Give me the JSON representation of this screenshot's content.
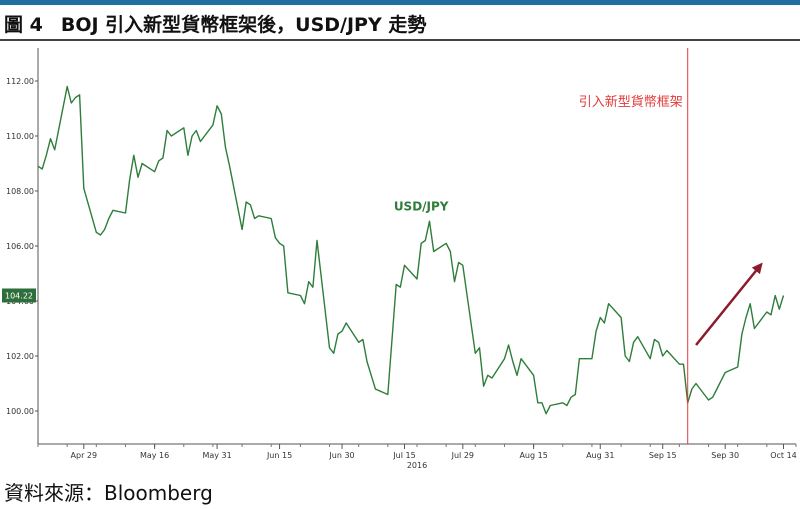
{
  "figure": {
    "label": "圖 4",
    "title": "BOJ 引入新型貨幣框架後，USD/JPY 走勢",
    "source": "資料來源：Bloomberg"
  },
  "colors": {
    "line": "#2e7d3a",
    "event": "#e23a3a",
    "arrow": "#8b1a2a",
    "rule": "#1f6fa0"
  },
  "chart_data": {
    "type": "line",
    "title": "",
    "xlabel": "",
    "ylabel": "",
    "ylim": [
      98.8,
      113.2
    ],
    "yticks": [
      100,
      102,
      104,
      106,
      108,
      110,
      112
    ],
    "ytick_labels": [
      "100.00",
      "102.00",
      "104.00",
      "106.00",
      "108.00",
      "110.00",
      "112.00"
    ],
    "xtick_labels": [
      {
        "date": "2016-04-29",
        "label": "Apr 29"
      },
      {
        "date": "2016-05-16",
        "label": "May 16"
      },
      {
        "date": "2016-05-31",
        "label": "May 31"
      },
      {
        "date": "2016-06-15",
        "label": "Jun 15"
      },
      {
        "date": "2016-06-30",
        "label": "Jun 30"
      },
      {
        "date": "2016-07-15",
        "label": "Jul 15"
      },
      {
        "date": "2016-07-29",
        "label": "Jul 29"
      },
      {
        "date": "2016-08-15",
        "label": "Aug 15"
      },
      {
        "date": "2016-08-31",
        "label": "Aug 31"
      },
      {
        "date": "2016-09-15",
        "label": "Sep 15"
      },
      {
        "date": "2016-09-30",
        "label": "Sep 30"
      },
      {
        "date": "2016-10-14",
        "label": "Oct 14"
      }
    ],
    "year_label": "2016",
    "last_value_tag": "104.22",
    "series": [
      {
        "name": "USD/JPY",
        "points": [
          [
            "2016-04-18",
            108.9
          ],
          [
            "2016-04-19",
            108.8
          ],
          [
            "2016-04-20",
            109.3
          ],
          [
            "2016-04-21",
            109.9
          ],
          [
            "2016-04-22",
            109.5
          ],
          [
            "2016-04-25",
            111.8
          ],
          [
            "2016-04-26",
            111.2
          ],
          [
            "2016-04-27",
            111.4
          ],
          [
            "2016-04-28",
            111.5
          ],
          [
            "2016-04-29",
            108.1
          ],
          [
            "2016-05-02",
            106.5
          ],
          [
            "2016-05-03",
            106.4
          ],
          [
            "2016-05-04",
            106.6
          ],
          [
            "2016-05-05",
            107.0
          ],
          [
            "2016-05-06",
            107.3
          ],
          [
            "2016-05-09",
            107.2
          ],
          [
            "2016-05-10",
            108.4
          ],
          [
            "2016-05-11",
            109.3
          ],
          [
            "2016-05-12",
            108.5
          ],
          [
            "2016-05-13",
            109.0
          ],
          [
            "2016-05-16",
            108.7
          ],
          [
            "2016-05-17",
            109.1
          ],
          [
            "2016-05-18",
            109.2
          ],
          [
            "2016-05-19",
            110.2
          ],
          [
            "2016-05-20",
            110.0
          ],
          [
            "2016-05-23",
            110.3
          ],
          [
            "2016-05-24",
            109.3
          ],
          [
            "2016-05-25",
            110.0
          ],
          [
            "2016-05-26",
            110.2
          ],
          [
            "2016-05-27",
            109.8
          ],
          [
            "2016-05-30",
            110.4
          ],
          [
            "2016-05-31",
            111.1
          ],
          [
            "2016-06-01",
            110.8
          ],
          [
            "2016-06-02",
            109.6
          ],
          [
            "2016-06-03",
            108.9
          ],
          [
            "2016-06-06",
            106.6
          ],
          [
            "2016-06-07",
            107.6
          ],
          [
            "2016-06-08",
            107.5
          ],
          [
            "2016-06-09",
            107.0
          ],
          [
            "2016-06-10",
            107.1
          ],
          [
            "2016-06-13",
            107.0
          ],
          [
            "2016-06-14",
            106.3
          ],
          [
            "2016-06-15",
            106.1
          ],
          [
            "2016-06-16",
            106.0
          ],
          [
            "2016-06-17",
            104.3
          ],
          [
            "2016-06-20",
            104.2
          ],
          [
            "2016-06-21",
            103.9
          ],
          [
            "2016-06-22",
            104.7
          ],
          [
            "2016-06-23",
            104.5
          ],
          [
            "2016-06-24",
            106.2
          ],
          [
            "2016-06-27",
            102.3
          ],
          [
            "2016-06-28",
            102.1
          ],
          [
            "2016-06-29",
            102.8
          ],
          [
            "2016-06-30",
            102.9
          ],
          [
            "2016-07-01",
            103.2
          ],
          [
            "2016-07-04",
            102.5
          ],
          [
            "2016-07-05",
            102.6
          ],
          [
            "2016-07-06",
            101.8
          ],
          [
            "2016-07-07",
            101.3
          ],
          [
            "2016-07-08",
            100.8
          ],
          [
            "2016-07-11",
            100.6
          ],
          [
            "2016-07-12",
            102.6
          ],
          [
            "2016-07-13",
            104.6
          ],
          [
            "2016-07-14",
            104.5
          ],
          [
            "2016-07-15",
            105.3
          ],
          [
            "2016-07-18",
            104.8
          ],
          [
            "2016-07-19",
            106.1
          ],
          [
            "2016-07-20",
            106.2
          ],
          [
            "2016-07-21",
            106.9
          ],
          [
            "2016-07-22",
            105.8
          ],
          [
            "2016-07-25",
            106.1
          ],
          [
            "2016-07-26",
            105.8
          ],
          [
            "2016-07-27",
            104.7
          ],
          [
            "2016-07-28",
            105.4
          ],
          [
            "2016-07-29",
            105.3
          ],
          [
            "2016-08-01",
            102.1
          ],
          [
            "2016-08-02",
            102.3
          ],
          [
            "2016-08-03",
            100.9
          ],
          [
            "2016-08-04",
            101.3
          ],
          [
            "2016-08-05",
            101.2
          ],
          [
            "2016-08-08",
            101.9
          ],
          [
            "2016-08-09",
            102.4
          ],
          [
            "2016-08-10",
            101.8
          ],
          [
            "2016-08-11",
            101.3
          ],
          [
            "2016-08-12",
            101.9
          ],
          [
            "2016-08-15",
            101.3
          ],
          [
            "2016-08-16",
            100.3
          ],
          [
            "2016-08-17",
            100.3
          ],
          [
            "2016-08-18",
            99.9
          ],
          [
            "2016-08-19",
            100.2
          ],
          [
            "2016-08-22",
            100.3
          ],
          [
            "2016-08-23",
            100.2
          ],
          [
            "2016-08-24",
            100.5
          ],
          [
            "2016-08-25",
            100.6
          ],
          [
            "2016-08-26",
            101.9
          ],
          [
            "2016-08-29",
            101.9
          ],
          [
            "2016-08-30",
            102.9
          ],
          [
            "2016-08-31",
            103.4
          ],
          [
            "2016-09-01",
            103.2
          ],
          [
            "2016-09-02",
            103.9
          ],
          [
            "2016-09-05",
            103.4
          ],
          [
            "2016-09-06",
            102.0
          ],
          [
            "2016-09-07",
            101.8
          ],
          [
            "2016-09-08",
            102.5
          ],
          [
            "2016-09-09",
            102.7
          ],
          [
            "2016-09-12",
            101.9
          ],
          [
            "2016-09-13",
            102.6
          ],
          [
            "2016-09-14",
            102.5
          ],
          [
            "2016-09-15",
            102.0
          ],
          [
            "2016-09-16",
            102.2
          ],
          [
            "2016-09-19",
            101.7
          ],
          [
            "2016-09-20",
            101.7
          ],
          [
            "2016-09-21",
            100.3
          ],
          [
            "2016-09-22",
            100.8
          ],
          [
            "2016-09-23",
            101.0
          ],
          [
            "2016-09-26",
            100.4
          ],
          [
            "2016-09-27",
            100.5
          ],
          [
            "2016-09-28",
            100.8
          ],
          [
            "2016-09-29",
            101.1
          ],
          [
            "2016-09-30",
            101.4
          ],
          [
            "2016-10-03",
            101.6
          ],
          [
            "2016-10-04",
            102.8
          ],
          [
            "2016-10-05",
            103.4
          ],
          [
            "2016-10-06",
            103.9
          ],
          [
            "2016-10-07",
            103.0
          ],
          [
            "2016-10-10",
            103.6
          ],
          [
            "2016-10-11",
            103.5
          ],
          [
            "2016-10-12",
            104.2
          ],
          [
            "2016-10-13",
            103.7
          ],
          [
            "2016-10-14",
            104.2
          ]
        ]
      }
    ],
    "annotations": [
      {
        "type": "label",
        "text": "USD/JPY"
      },
      {
        "type": "vline",
        "date": "2016-09-21",
        "text": "引入新型貨幣框架"
      },
      {
        "type": "arrow",
        "from": [
          "2016-09-23",
          102.4
        ],
        "to": [
          "2016-10-09",
          105.4
        ]
      }
    ]
  }
}
